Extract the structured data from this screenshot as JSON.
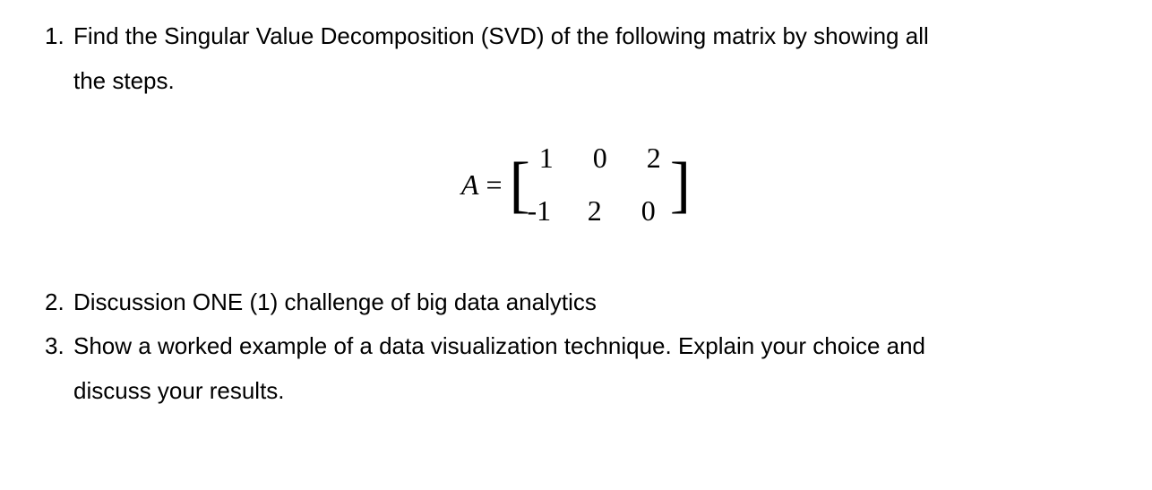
{
  "q1": {
    "number": "1.",
    "line1": "Find the Singular Value Decomposition (SVD) of the following matrix by showing all",
    "line2": "the steps."
  },
  "matrix": {
    "label": "A",
    "equals": "=",
    "rows": [
      [
        "1",
        "0",
        "2"
      ],
      [
        "-1",
        "2",
        "0"
      ]
    ]
  },
  "q2": {
    "number": "2.",
    "text": "Discussion ONE (1) challenge of big data analytics"
  },
  "q3": {
    "number": "3.",
    "line1": "Show a worked example of a data visualization technique. Explain your choice and",
    "line2": "discuss your results."
  }
}
